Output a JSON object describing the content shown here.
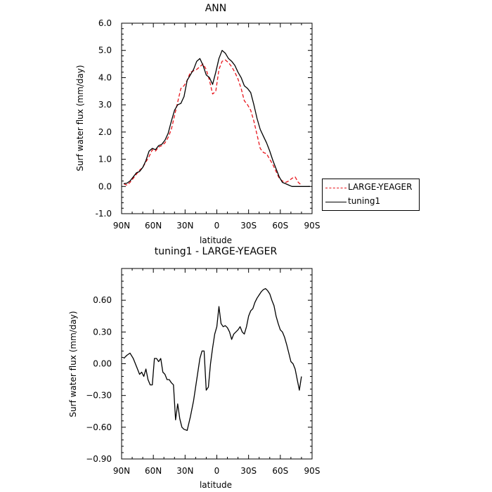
{
  "chart_data": [
    {
      "type": "line",
      "title": "ANN",
      "xlabel": "latitude",
      "ylabel": "Surf water flux (mm/day)",
      "xlim": [
        90,
        -90
      ],
      "ylim": [
        -1.0,
        6.0
      ],
      "xticks": [
        {
          "value": 90,
          "label": "90N"
        },
        {
          "value": 60,
          "label": "60N"
        },
        {
          "value": 30,
          "label": "30N"
        },
        {
          "value": 0,
          "label": "0"
        },
        {
          "value": -30,
          "label": "30S"
        },
        {
          "value": -60,
          "label": "60S"
        },
        {
          "value": -90,
          "label": "90S"
        }
      ],
      "yticks": [
        {
          "value": -1.0,
          "label": "-1.0"
        },
        {
          "value": 0.0,
          "label": "0.0"
        },
        {
          "value": 1.0,
          "label": "1.0"
        },
        {
          "value": 2.0,
          "label": "2.0"
        },
        {
          "value": 3.0,
          "label": "3.0"
        },
        {
          "value": 4.0,
          "label": "4.0"
        },
        {
          "value": 5.0,
          "label": "5.0"
        },
        {
          "value": 6.0,
          "label": "6.0"
        }
      ],
      "legend_position": "right",
      "series": [
        {
          "name": "LARGE-YEAGER",
          "color": "#e8141b",
          "dash": "dashed",
          "x": [
            88,
            85,
            82,
            79,
            76,
            73,
            70,
            67,
            64,
            61,
            58,
            55,
            52,
            49,
            46,
            43,
            40,
            37,
            34,
            31,
            28,
            25,
            22,
            19,
            16,
            13,
            10,
            7,
            4,
            1,
            -2,
            -5,
            -8,
            -11,
            -14,
            -17,
            -20,
            -23,
            -26,
            -29,
            -32,
            -35,
            -38,
            -41,
            -44,
            -47,
            -50,
            -53,
            -56,
            -59,
            -62,
            -65,
            -68,
            -71,
            -74,
            -77,
            -80
          ],
          "y": [
            0.1,
            0.05,
            0.15,
            0.3,
            0.45,
            0.6,
            0.7,
            0.9,
            1.1,
            1.35,
            1.3,
            1.45,
            1.5,
            1.6,
            1.8,
            2.1,
            2.6,
            3.1,
            3.6,
            3.7,
            3.9,
            4.2,
            4.25,
            4.3,
            4.4,
            4.5,
            4.3,
            3.9,
            3.4,
            3.5,
            4.3,
            4.6,
            4.65,
            4.55,
            4.4,
            4.2,
            3.95,
            3.6,
            3.15,
            3.0,
            2.8,
            2.4,
            1.9,
            1.4,
            1.25,
            1.2,
            1.0,
            0.8,
            0.55,
            0.3,
            0.2,
            0.15,
            0.2,
            0.3,
            0.35,
            0.15,
            0.05
          ]
        },
        {
          "name": "tuning1",
          "color": "#000000",
          "dash": "solid",
          "x": [
            88,
            85,
            82,
            79,
            76,
            73,
            70,
            67,
            64,
            61,
            58,
            55,
            52,
            49,
            46,
            43,
            40,
            37,
            34,
            31,
            28,
            25,
            22,
            19,
            16,
            13,
            10,
            7,
            4,
            1,
            -2,
            -5,
            -8,
            -11,
            -14,
            -17,
            -20,
            -23,
            -26,
            -29,
            -32,
            -35,
            -38,
            -41,
            -44,
            -47,
            -50,
            -53,
            -56,
            -59,
            -62,
            -65,
            -68,
            -71,
            -74,
            -77,
            -80,
            -84,
            -88
          ],
          "y": [
            0.1,
            0.12,
            0.2,
            0.35,
            0.5,
            0.55,
            0.7,
            0.95,
            1.3,
            1.4,
            1.35,
            1.5,
            1.55,
            1.7,
            1.95,
            2.4,
            2.8,
            3.0,
            3.05,
            3.3,
            3.9,
            4.1,
            4.3,
            4.6,
            4.7,
            4.45,
            4.1,
            4.0,
            3.75,
            4.2,
            4.7,
            5.0,
            4.9,
            4.7,
            4.6,
            4.45,
            4.2,
            4.0,
            3.7,
            3.6,
            3.45,
            3.0,
            2.5,
            2.1,
            1.85,
            1.6,
            1.3,
            0.95,
            0.65,
            0.35,
            0.15,
            0.1,
            0.05,
            0.0,
            0.0,
            0.0,
            0.0,
            0.0,
            0.0
          ]
        }
      ]
    },
    {
      "type": "line",
      "title": "tuning1 - LARGE-YEAGER",
      "xlabel": "latitude",
      "ylabel": "Surf water flux (mm/day)",
      "xlim": [
        90,
        -90
      ],
      "ylim": [
        -0.9,
        0.9
      ],
      "xticks": [
        {
          "value": 90,
          "label": "90N"
        },
        {
          "value": 60,
          "label": "60N"
        },
        {
          "value": 30,
          "label": "30N"
        },
        {
          "value": 0,
          "label": "0"
        },
        {
          "value": -30,
          "label": "30S"
        },
        {
          "value": -60,
          "label": "60S"
        },
        {
          "value": -90,
          "label": "90S"
        }
      ],
      "yticks": [
        {
          "value": -0.9,
          "label": "−0.90"
        },
        {
          "value": -0.6,
          "label": "−0.60"
        },
        {
          "value": -0.3,
          "label": "−0.30"
        },
        {
          "value": 0.0,
          "label": "0.00"
        },
        {
          "value": 0.3,
          "label": "0.30"
        },
        {
          "value": 0.6,
          "label": "0.60"
        }
      ],
      "series": [
        {
          "color": "#000000",
          "dash": "solid",
          "x": [
            88,
            85,
            82,
            79,
            77,
            75,
            73,
            71,
            69,
            67,
            65,
            63,
            61,
            59,
            57,
            55,
            53,
            51,
            49,
            47,
            45,
            43,
            41,
            39,
            37,
            35,
            33,
            31,
            28,
            25,
            22,
            19,
            16,
            14,
            12,
            10,
            8,
            6,
            4,
            2,
            0,
            -2,
            -4,
            -6,
            -8,
            -10,
            -12,
            -14,
            -16,
            -18,
            -20,
            -22,
            -24,
            -26,
            -28,
            -30,
            -32,
            -34,
            -36,
            -38,
            -40,
            -42,
            -44,
            -46,
            -48,
            -50,
            -52,
            -54,
            -56,
            -58,
            -60,
            -62,
            -64,
            -66,
            -68,
            -70,
            -72,
            -74,
            -76,
            -78,
            -80
          ],
          "y": [
            0.05,
            0.08,
            0.1,
            0.05,
            0.0,
            -0.05,
            -0.1,
            -0.08,
            -0.12,
            -0.05,
            -0.15,
            -0.2,
            -0.2,
            0.05,
            0.05,
            0.02,
            0.05,
            -0.08,
            -0.1,
            -0.15,
            -0.15,
            -0.18,
            -0.2,
            -0.53,
            -0.38,
            -0.52,
            -0.6,
            -0.62,
            -0.63,
            -0.5,
            -0.35,
            -0.15,
            0.05,
            0.12,
            0.12,
            -0.25,
            -0.22,
            0.0,
            0.15,
            0.28,
            0.35,
            0.54,
            0.38,
            0.35,
            0.36,
            0.34,
            0.3,
            0.23,
            0.28,
            0.3,
            0.32,
            0.35,
            0.3,
            0.28,
            0.35,
            0.45,
            0.5,
            0.52,
            0.58,
            0.62,
            0.65,
            0.68,
            0.7,
            0.71,
            0.69,
            0.66,
            0.6,
            0.55,
            0.45,
            0.38,
            0.32,
            0.3,
            0.25,
            0.18,
            0.1,
            0.02,
            0.0,
            -0.05,
            -0.15,
            -0.25,
            -0.12
          ]
        }
      ]
    }
  ]
}
